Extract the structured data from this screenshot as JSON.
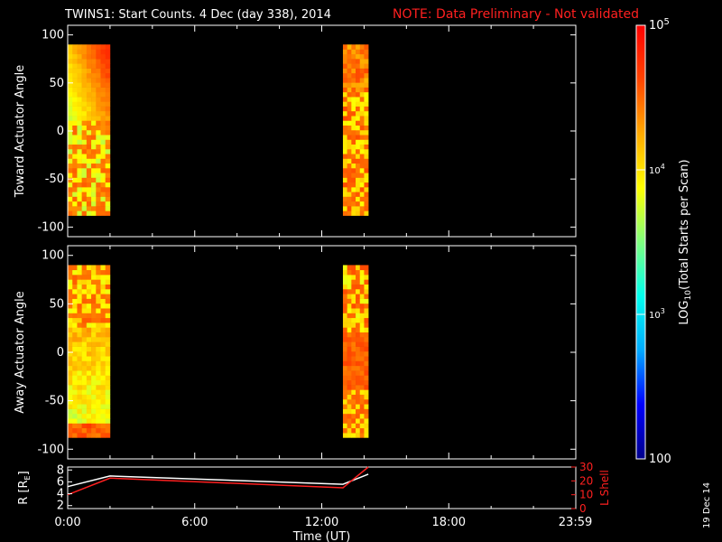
{
  "header": {
    "title": "TWINS1: Start Counts.  4 Dec (day 338), 2014",
    "note": "NOTE: Data Preliminary - Not validated"
  },
  "stamp": "19 Dec 14",
  "colorbar": {
    "label_main": "LOG",
    "label_sub": "10",
    "label_rest": "(Total Starts per Scan)",
    "ticks": [
      {
        "value": 100,
        "text": "100"
      },
      {
        "value": 1000,
        "text": "10",
        "sup": "3"
      },
      {
        "value": 10000,
        "text": "10",
        "sup": "4"
      },
      {
        "value": 100000,
        "text": "10",
        "sup": "5"
      }
    ],
    "range": [
      100,
      100000
    ],
    "colors": [
      "#00008b",
      "#0000ff",
      "#00aaff",
      "#00ffee",
      "#7fff7f",
      "#ffff00",
      "#ffaa00",
      "#ff4400",
      "#ff0000"
    ]
  },
  "chart_data": [
    {
      "type": "heatmap",
      "title": "TWINS1: Start Counts.  4 Dec (day 338), 2014",
      "ylabel": "Toward Actuator Angle",
      "ylim": [
        -110,
        110
      ],
      "yticks": [
        "100",
        "50",
        "0",
        "-50",
        "-100"
      ],
      "ytick_values": [
        100,
        50,
        0,
        -50,
        -100
      ],
      "xlim": [
        0,
        24
      ],
      "data_intervals_hours": [
        [
          0.0,
          2.0
        ],
        [
          13.0,
          14.2
        ]
      ],
      "angle_range": [
        -88,
        90
      ]
    },
    {
      "type": "heatmap",
      "ylabel": "Away Actuator Angle",
      "ylim": [
        -110,
        110
      ],
      "yticks": [
        "100",
        "50",
        "0",
        "-50",
        "-100"
      ],
      "ytick_values": [
        100,
        50,
        0,
        -50,
        -100
      ],
      "xlim": [
        0,
        24
      ],
      "data_intervals_hours": [
        [
          0.0,
          2.0
        ],
        [
          13.0,
          14.2
        ]
      ],
      "angle_range": [
        -88,
        90
      ]
    },
    {
      "type": "line",
      "ylabel_left": "R [R",
      "ylabel_left_sub": "E",
      "ylabel_left_end": "]",
      "ylabel_right": "L Shell",
      "yticks_left": [
        "8",
        "6",
        "4",
        "2"
      ],
      "ytick_left_values": [
        8,
        6,
        4,
        2
      ],
      "yticks_right": [
        "30",
        "20",
        "10",
        "0"
      ],
      "ytick_right_values": [
        30,
        20,
        10,
        0
      ],
      "ylim_left": [
        1.5,
        8.5
      ],
      "ylim_right": [
        0,
        30
      ],
      "xlabel": "Time (UT)",
      "xticks": [
        "0:00",
        "6:00",
        "12:00",
        "18:00",
        "23:59"
      ],
      "xtick_values": [
        0,
        6,
        12,
        18,
        23.98
      ],
      "xlim": [
        0,
        24
      ],
      "series": [
        {
          "color": "#ffffff",
          "x": [
            0.0,
            2.0,
            13.0,
            14.2
          ],
          "y": [
            5.2,
            7.0,
            5.6,
            7.3
          ]
        },
        {
          "color": "#ff2020",
          "axis": "right",
          "x": [
            0.0,
            2.0,
            13.0,
            14.2
          ],
          "y": [
            10,
            22,
            15,
            30
          ]
        }
      ]
    }
  ]
}
